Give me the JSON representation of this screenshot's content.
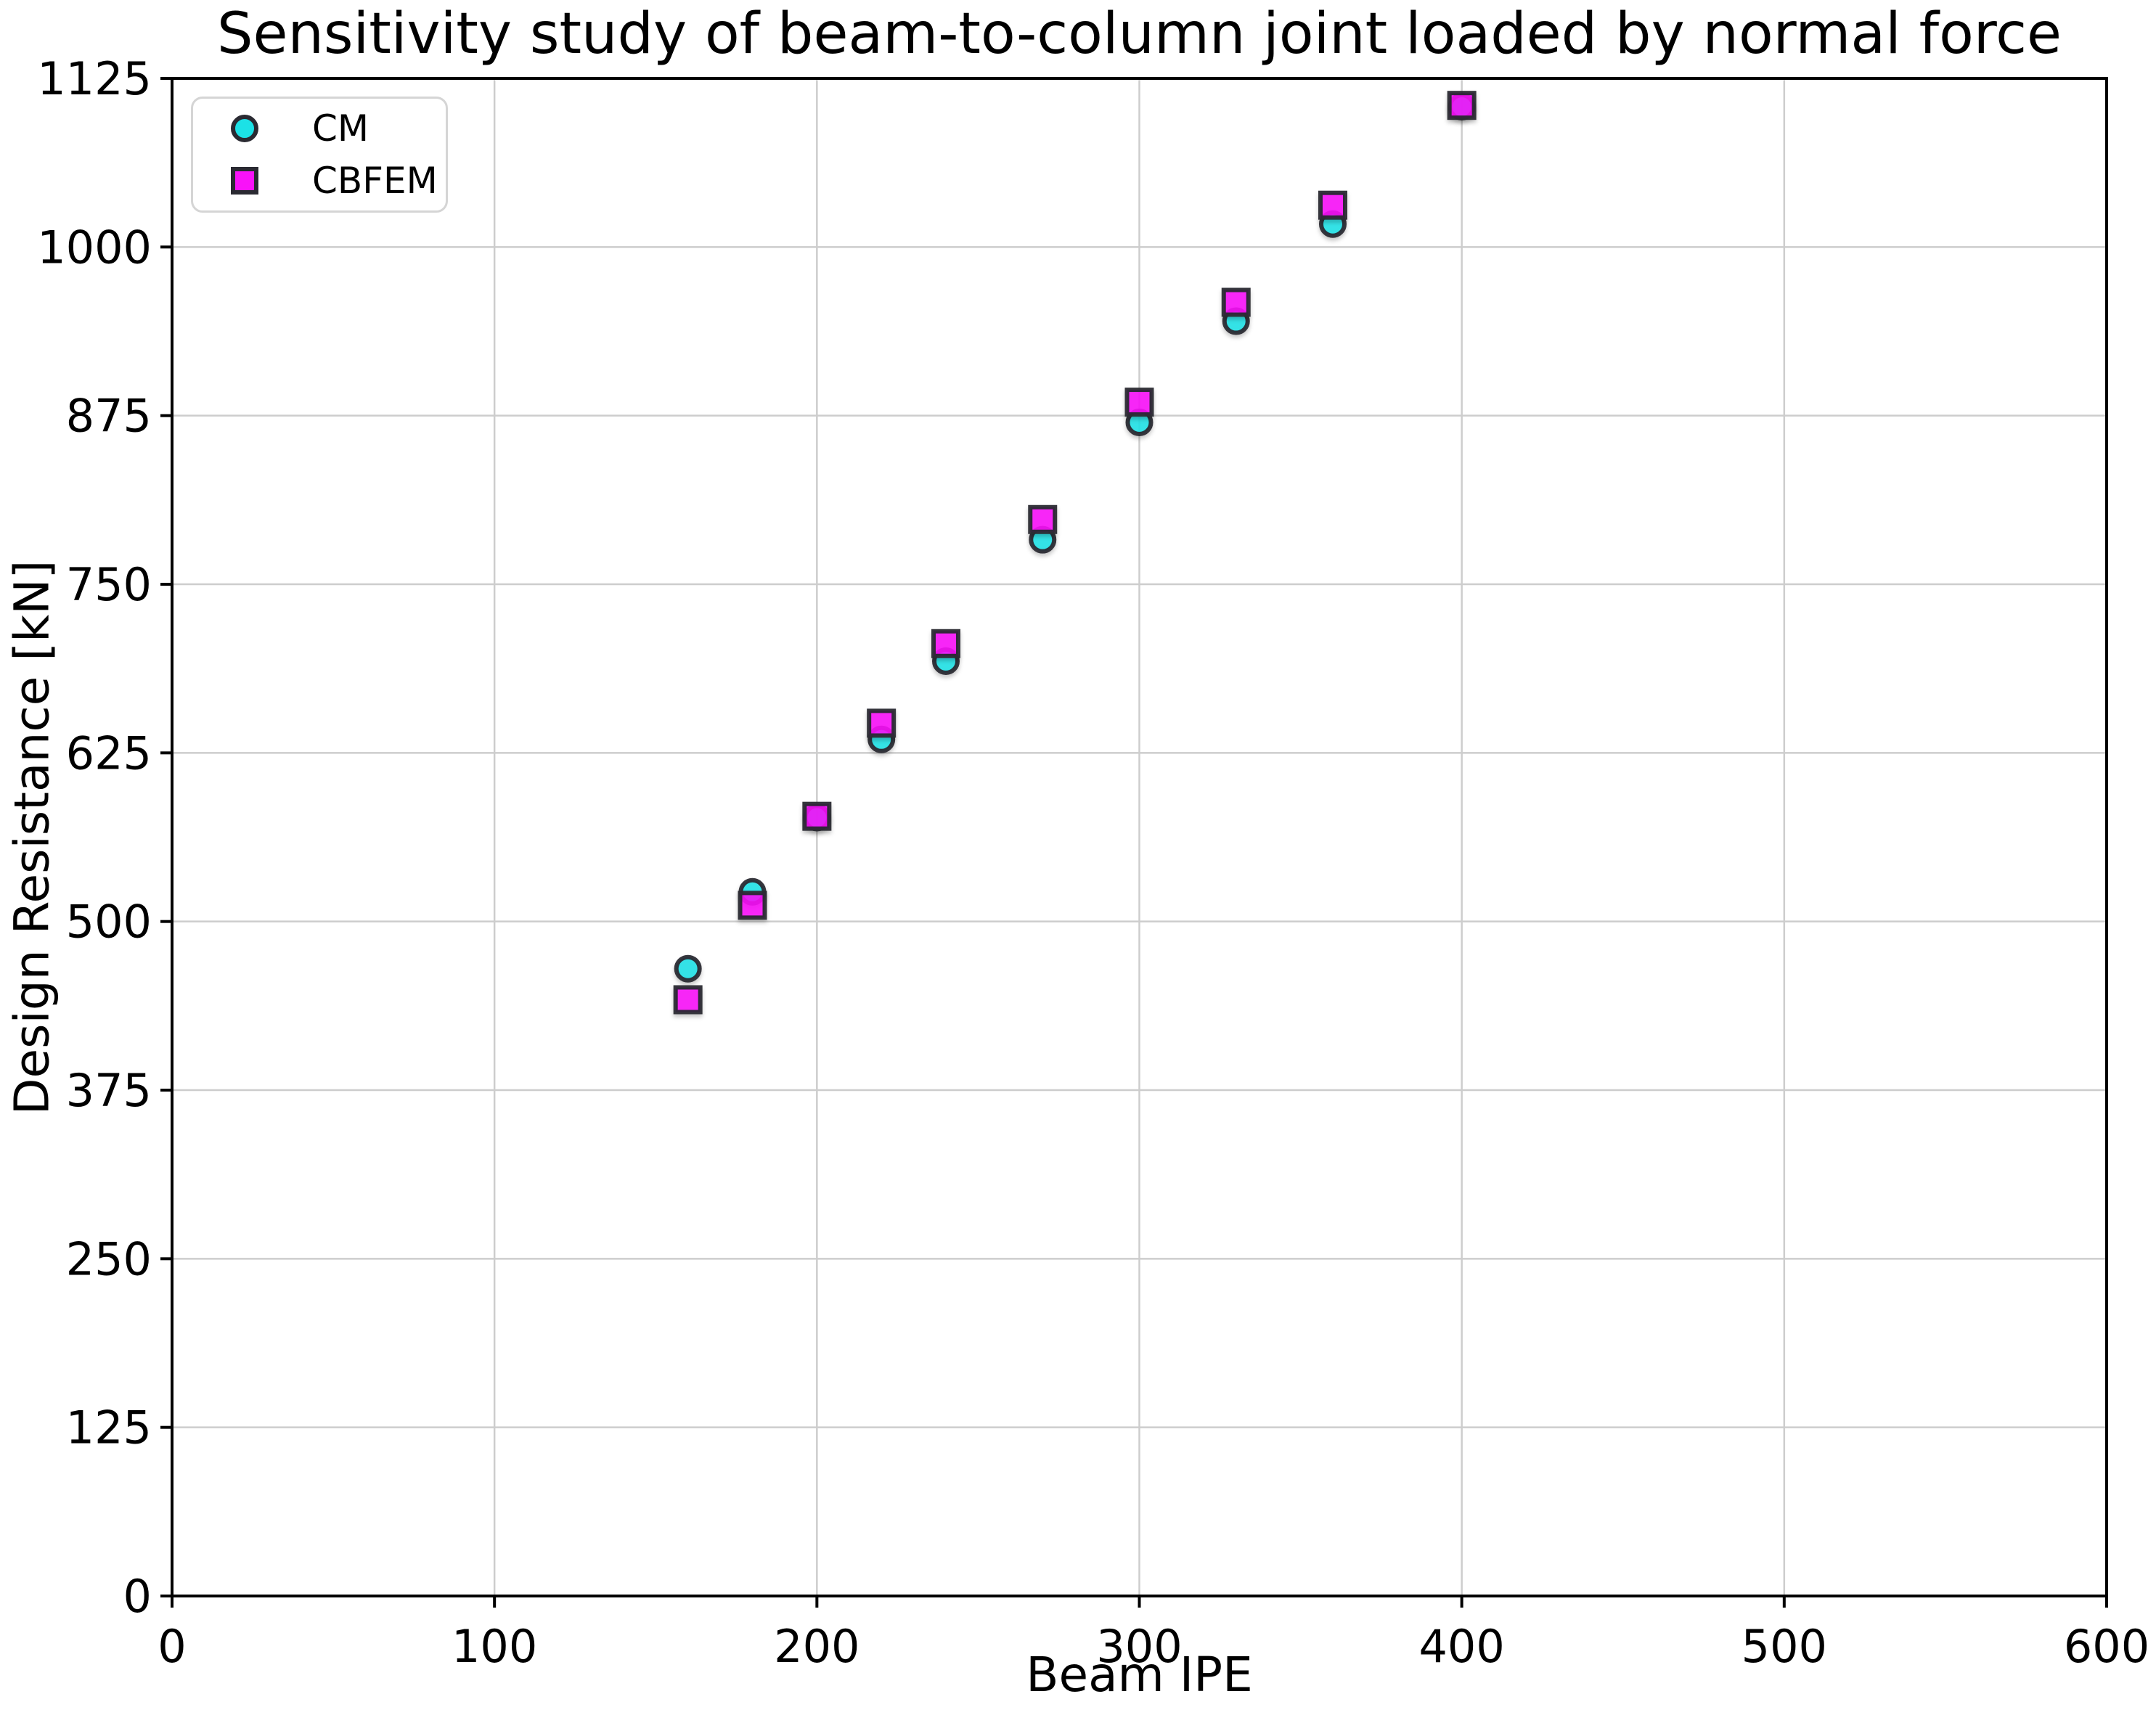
{
  "chart_data": {
    "type": "scatter",
    "title": "Sensitivity study of beam-to-column joint loaded by normal force",
    "xlabel": "Beam IPE",
    "ylabel": "Design Resistance [kN]",
    "xlim": [
      0,
      600
    ],
    "ylim": [
      0,
      1125
    ],
    "xticks": [
      0,
      100,
      200,
      300,
      400,
      500,
      600
    ],
    "yticks": [
      0,
      125,
      250,
      375,
      500,
      625,
      750,
      875,
      1000,
      1125
    ],
    "grid": true,
    "legend_position": "upper left",
    "x": [
      160,
      180,
      200,
      220,
      240,
      270,
      300,
      330,
      360,
      400
    ],
    "series": [
      {
        "name": "CM",
        "marker": "circle",
        "color": "#1ce1e6",
        "values": [
          465,
          522,
          577,
          635,
          693,
          783,
          870,
          945,
          1017,
          1104
        ]
      },
      {
        "name": "CBFEM",
        "marker": "square",
        "color": "#f912f9",
        "values": [
          442,
          512,
          578,
          647,
          706,
          798,
          885,
          959,
          1031,
          1105
        ]
      }
    ],
    "marker_edge_color": "#2a2a32",
    "grid_color": "#cdcdcd",
    "axis_color": "#000000",
    "background": "#ffffff"
  }
}
